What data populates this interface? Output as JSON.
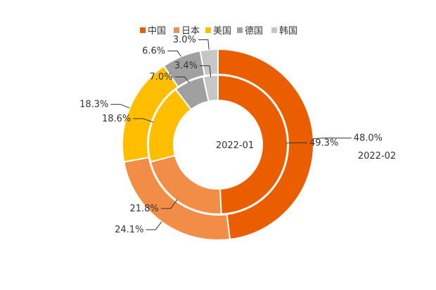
{
  "chart_data": {
    "type": "pie",
    "subtype": "nested-donut",
    "categories": [
      "中国",
      "日本",
      "美国",
      "德国",
      "韩国"
    ],
    "colors": [
      "#EB5E00",
      "#F28D48",
      "#FFBF00",
      "#A0A0A0",
      "#C6C6C6"
    ],
    "legend_position": "top",
    "series": [
      {
        "name": "2022-01",
        "ring": "inner",
        "values": [
          49.3,
          21.8,
          18.6,
          7.0,
          3.4
        ],
        "labels": [
          "49.3%",
          "21.8%",
          "18.6%",
          "7.0%",
          "3.4%"
        ]
      },
      {
        "name": "2022-02",
        "ring": "outer",
        "values": [
          48.0,
          24.1,
          18.3,
          6.6,
          3.0
        ],
        "labels": [
          "48.0%",
          "24.1%",
          "18.3%",
          "6.6%",
          "3.0%"
        ]
      }
    ]
  }
}
